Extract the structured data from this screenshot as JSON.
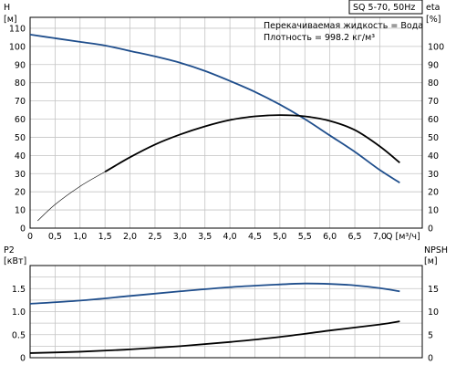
{
  "model_label": "SQ 5-70, 50Hz",
  "info": {
    "liquid": "Перекачиваемая жидкость = Вода",
    "density": "Плотность = 998.2 кг/м³"
  },
  "colors": {
    "background": "#ffffff",
    "grid": "#c4c4c4",
    "axis": "#000000",
    "head_curve": "#1f4e8c",
    "efficiency_curve": "#000000",
    "p2_curve": "#1f4e8c",
    "npsh_curve": "#000000"
  },
  "chart_data": [
    {
      "type": "line",
      "grid": true,
      "xlabel": "Q [м³/ч]",
      "x_ticks": [
        "0",
        "0,5",
        "1,0",
        "1,5",
        "2,0",
        "2,5",
        "3,0",
        "3,5",
        "4,0",
        "4,5",
        "5,0",
        "5,5",
        "6,0",
        "6,5",
        "7,0"
      ],
      "xlim": [
        0,
        7.85
      ],
      "ylabel": [
        "H",
        "[м]"
      ],
      "y_ticks": [
        "0",
        "10",
        "20",
        "30",
        "40",
        "50",
        "60",
        "70",
        "80",
        "90",
        "100",
        "110"
      ],
      "ylim": [
        0,
        116
      ],
      "y2label": [
        "eta",
        "[%]"
      ],
      "y2_ticks": [
        "0",
        "10",
        "20",
        "30",
        "40",
        "50",
        "60",
        "70",
        "80",
        "90",
        "100"
      ],
      "y2lim": [
        0,
        116
      ],
      "series": [
        {
          "axis": "left",
          "color": "#1f4e8c",
          "x": [
            0,
            0.5,
            1.0,
            1.5,
            2.0,
            2.5,
            3.0,
            3.5,
            4.0,
            4.5,
            5.0,
            5.5,
            6.0,
            6.5,
            7.0,
            7.4
          ],
          "y": [
            106.5,
            104.5,
            102.5,
            100.5,
            97.5,
            94.5,
            91,
            86.5,
            81,
            75,
            68,
            60,
            51,
            42,
            32,
            25
          ]
        },
        {
          "axis": "right",
          "color": "#000000",
          "thin_until_x": 1.5,
          "x": [
            0.15,
            0.5,
            1.0,
            1.5,
            2.0,
            2.5,
            3.0,
            3.5,
            4.0,
            4.5,
            5.0,
            5.5,
            6.0,
            6.5,
            7.0,
            7.4
          ],
          "y": [
            4,
            13,
            23,
            31,
            39,
            46,
            51.5,
            56,
            59.5,
            61.5,
            62.2,
            61.5,
            59,
            54,
            45,
            36
          ]
        }
      ]
    },
    {
      "type": "line",
      "grid": true,
      "xlim": [
        0,
        7.85
      ],
      "ylabel": [
        "P2",
        "[кВт]"
      ],
      "y_ticks": [
        "0",
        "0.5",
        "1.0",
        "1.5"
      ],
      "ylim": [
        0,
        2.0
      ],
      "y2label": [
        "NPSH",
        "[м]"
      ],
      "y2_ticks": [
        "0",
        "5",
        "10",
        "15"
      ],
      "y2lim": [
        0,
        20
      ],
      "series": [
        {
          "axis": "left",
          "color": "#1f4e8c",
          "x": [
            0,
            1.0,
            2.0,
            3.0,
            4.0,
            5.0,
            5.5,
            6.0,
            6.5,
            7.0,
            7.4
          ],
          "y": [
            1.17,
            1.24,
            1.34,
            1.44,
            1.53,
            1.59,
            1.61,
            1.6,
            1.57,
            1.51,
            1.44
          ]
        },
        {
          "axis": "right",
          "color": "#000000",
          "x": [
            0,
            1.0,
            2.0,
            3.0,
            4.0,
            5.0,
            6.0,
            7.0,
            7.4
          ],
          "y": [
            1.0,
            1.3,
            1.8,
            2.5,
            3.4,
            4.5,
            5.9,
            7.2,
            7.9
          ]
        }
      ]
    }
  ]
}
